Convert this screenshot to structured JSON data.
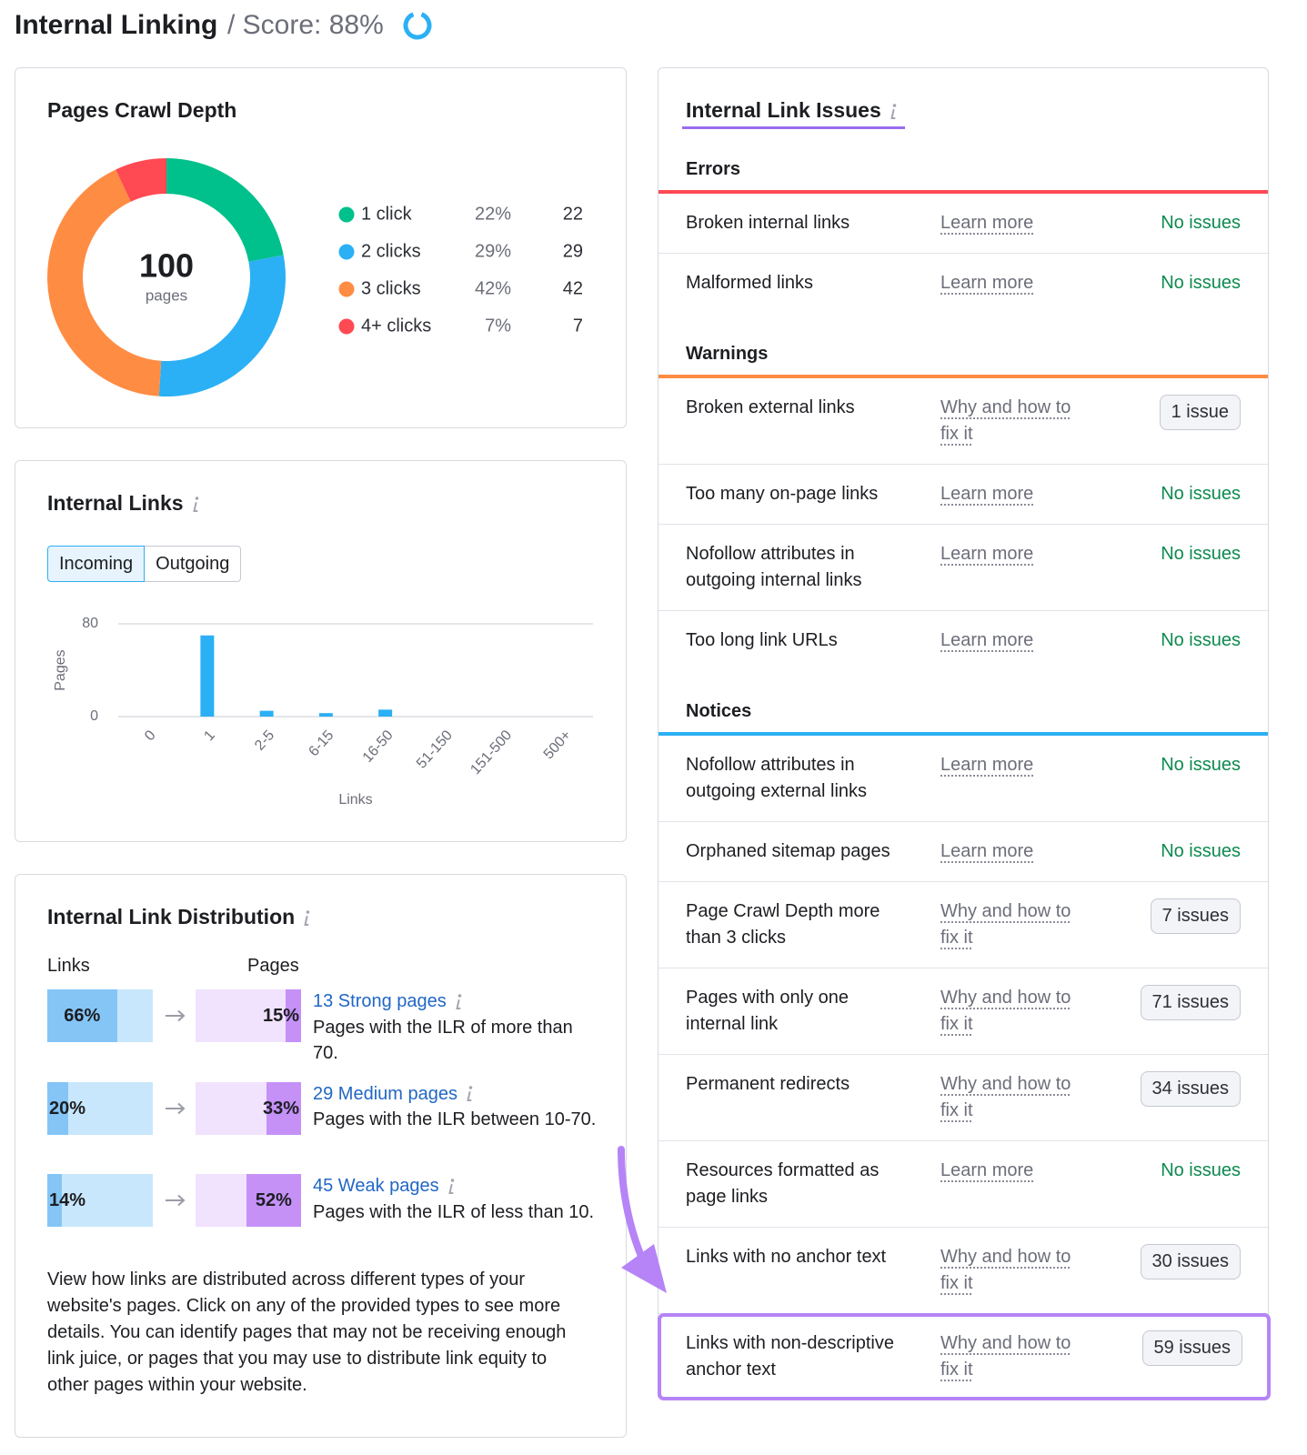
{
  "header": {
    "title": "Internal Linking",
    "score": "/ Score: 88%"
  },
  "chart_data": [
    {
      "type": "pie",
      "title": "Pages Crawl Depth",
      "total": 100,
      "total_label": "pages",
      "categories": [
        "1 click",
        "2 clicks",
        "3 clicks",
        "4+ clicks"
      ],
      "values": [
        22,
        29,
        42,
        7
      ],
      "value_labels": [
        "22%",
        "29%",
        "42%",
        "7%"
      ],
      "colors": [
        "#00c08b",
        "#2bb0f5",
        "#ff8c43",
        "#ff4953"
      ]
    },
    {
      "type": "bar",
      "title": "Internal Links",
      "tabs": [
        "Incoming",
        "Outgoing"
      ],
      "ylabel": "Pages",
      "xlabel": "Links",
      "categories": [
        "0",
        "1",
        "2-5",
        "6-15",
        "16-50",
        "51-150",
        "151-500",
        "500+"
      ],
      "values": [
        0,
        70,
        5,
        3,
        6,
        0,
        0,
        0
      ],
      "color": "#2bb0f5",
      "ylim": [
        0,
        80
      ],
      "yticks": [
        0,
        80
      ],
      "grid": true
    }
  ],
  "distribution": {
    "title": "Internal Link Distribution",
    "columns": [
      "Links",
      "Pages"
    ],
    "rows": [
      {
        "links": {
          "value": 66,
          "label": "66%"
        },
        "pages": {
          "value": 15,
          "label": "15%"
        },
        "name": "13 Strong pages",
        "description": "Pages with the ILR of more than 70."
      },
      {
        "links": {
          "value": 20,
          "label": "20%"
        },
        "pages": {
          "value": 33,
          "label": "33%"
        },
        "name": "29 Medium pages",
        "description": "Pages with the ILR between 10-70."
      },
      {
        "links": {
          "value": 14,
          "label": "14%"
        },
        "pages": {
          "value": 52,
          "label": "52%"
        },
        "name": "45 Weak pages",
        "description": "Pages with the ILR of less than 10."
      }
    ],
    "note": "View how links are distributed across different types of your website's pages. Click on any of the provided types to see more details. You can identify pages that may not be receiving enough link juice, or pages that you may use to distribute link equity to other pages within your website."
  },
  "issues": {
    "title": "Internal Link Issues",
    "sections": [
      {
        "name": "Errors",
        "color": "#ff4953",
        "items": [
          {
            "issue": "Broken internal links",
            "link": "Learn more",
            "status": "No issues"
          },
          {
            "issue": "Malformed links",
            "link": "Learn more",
            "status": "No issues"
          }
        ]
      },
      {
        "name": "Warnings",
        "color": "#ff8c43",
        "items": [
          {
            "issue": "Broken external links",
            "link": "Why and how to fix it",
            "status": "1 issue"
          },
          {
            "issue": "Too many on-page links",
            "link": "Learn more",
            "status": "No issues"
          },
          {
            "issue": "Nofollow attributes in outgoing internal links",
            "link": "Learn more",
            "status": "No issues"
          },
          {
            "issue": "Too long link URLs",
            "link": "Learn more",
            "status": "No issues"
          }
        ]
      },
      {
        "name": "Notices",
        "color": "#2bb0f5",
        "items": [
          {
            "issue": "Nofollow attributes in outgoing external links",
            "link": "Learn more",
            "status": "No issues"
          },
          {
            "issue": "Orphaned sitemap pages",
            "link": "Learn more",
            "status": "No issues"
          },
          {
            "issue": "Page Crawl Depth more than 3 clicks",
            "link": "Why and how to fix it",
            "status": "7 issues"
          },
          {
            "issue": "Pages with only one internal link",
            "link": "Why and how to fix it",
            "status": "71 issues"
          },
          {
            "issue": "Permanent redirects",
            "link": "Why and how to fix it",
            "status": "34 issues"
          },
          {
            "issue": "Resources formatted as page links",
            "link": "Learn more",
            "status": "No issues"
          },
          {
            "issue": "Links with no anchor text",
            "link": "Why and how to fix it",
            "status": "30 issues"
          },
          {
            "issue": "Links with non-descriptive anchor text",
            "link": "Why and how to fix it",
            "status": "59 issues"
          }
        ]
      }
    ]
  }
}
